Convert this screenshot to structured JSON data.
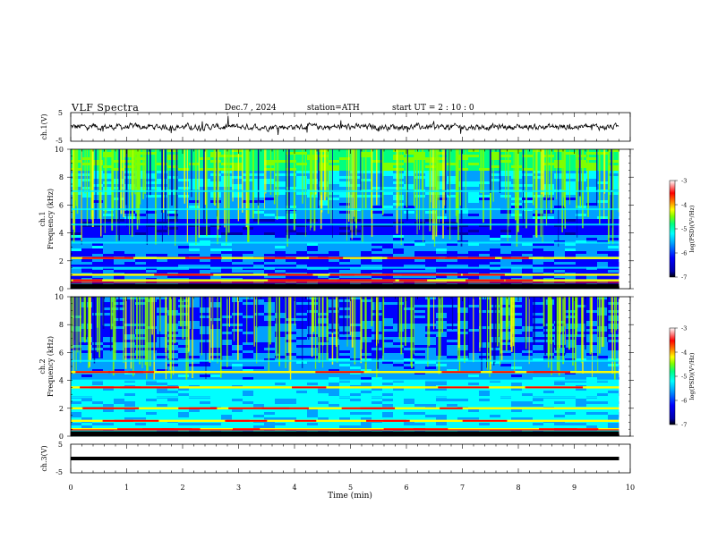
{
  "header": {
    "title": "VLF  Spectra",
    "date": "Dec.7  , 2024",
    "station": "station=ATH",
    "start": "start  UT  =   2  : 10 : 0"
  },
  "chart_data": [
    {
      "type": "line",
      "panel": "ch1-waveform",
      "ylabel": "ch.1(V)",
      "yticks": [
        "5",
        "-5"
      ],
      "ylim": [
        -5,
        5
      ],
      "xlim": [
        0,
        10
      ],
      "data_extent_min": [
        0,
        9.8
      ],
      "baseline_value": 0.0,
      "noise_amplitude": 1.0
    },
    {
      "type": "heatmap",
      "panel": "ch1-spectrogram",
      "ylabel_line1": "ch.1",
      "ylabel_line2": "Frequency (kHz)",
      "yticks": [
        "0",
        "2",
        "4",
        "6",
        "8",
        "10"
      ],
      "ylim_khz": [
        0,
        10
      ],
      "xlim_min": [
        0,
        10
      ],
      "data_extent_min": [
        0,
        9.8
      ],
      "colorbar": {
        "label": "log(PSD)(V²/Hz)",
        "ticks": [
          "-3",
          "-4",
          "-5",
          "-6",
          "-7"
        ],
        "range": [
          -7,
          -3
        ]
      },
      "strong_bands_khz": [
        0.2,
        0.6,
        1.0,
        2.2
      ],
      "weak_bands_khz": [
        1.5,
        3.3,
        4.6,
        5.7,
        7.0
      ]
    },
    {
      "type": "heatmap",
      "panel": "ch2-spectrogram",
      "ylabel_line1": "ch.2",
      "ylabel_line2": "Frequency (kHz)",
      "yticks": [
        "0",
        "2",
        "4",
        "6",
        "8",
        "10"
      ],
      "ylim_khz": [
        0,
        10
      ],
      "xlim_min": [
        0,
        10
      ],
      "data_extent_min": [
        0,
        9.8
      ],
      "colorbar": {
        "label": "log(PSD)(V²/Hz)",
        "ticks": [
          "-3",
          "-4",
          "-5",
          "-6",
          "-7"
        ],
        "range": [
          -7,
          -3
        ]
      },
      "strong_bands_khz": [
        0.2,
        0.5,
        1.1,
        2.0,
        3.5,
        4.6
      ],
      "weak_bands_khz": [
        2.8,
        4.0,
        5.4
      ]
    },
    {
      "type": "line",
      "panel": "ch3-waveform",
      "ylabel": "ch.3(V)",
      "yticks": [
        "5",
        "-5"
      ],
      "ylim": [
        -5,
        5
      ],
      "xlim": [
        0,
        10
      ],
      "data_extent_min": [
        0,
        9.8
      ],
      "baseline_value": 0.0
    }
  ],
  "xaxis": {
    "label": "Time  (min)",
    "ticks": [
      "0",
      "1",
      "2",
      "3",
      "4",
      "5",
      "6",
      "7",
      "8",
      "9",
      "10"
    ],
    "range": [
      0,
      10
    ]
  },
  "colors": {
    "colormap": [
      "#000000",
      "#0000a8",
      "#0000ff",
      "#00a0ff",
      "#00ffff",
      "#00ff80",
      "#80ff00",
      "#ffff00",
      "#ff8000",
      "#ff0000",
      "#ffffff"
    ]
  }
}
